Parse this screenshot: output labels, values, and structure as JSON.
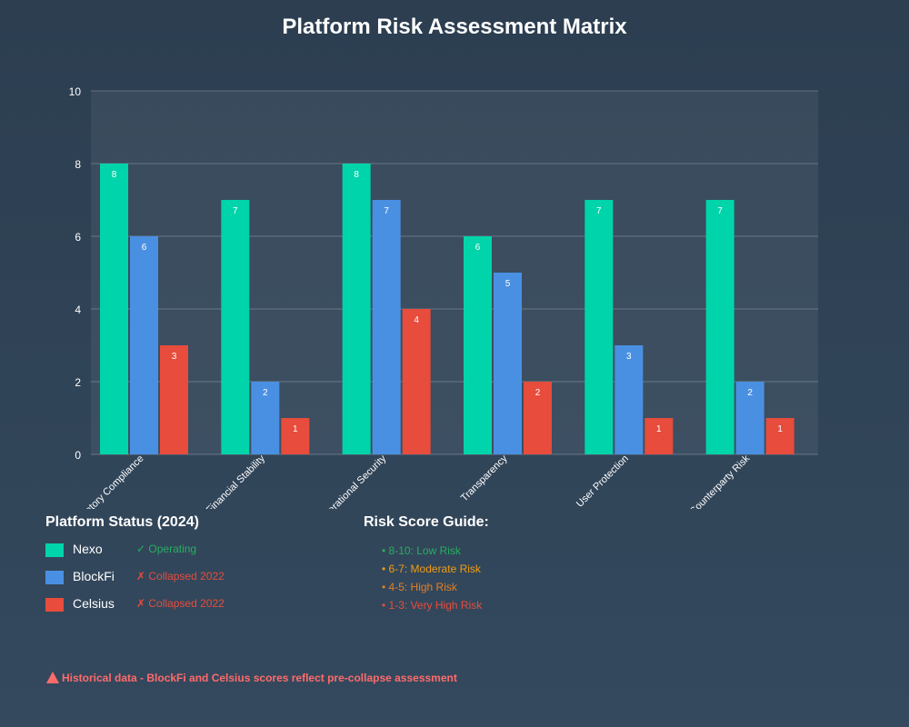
{
  "chart_data": {
    "type": "bar",
    "title": "Platform Risk Assessment Matrix",
    "categories": [
      "Regulatory Compliance",
      "Financial Stability",
      "Operational Security",
      "Transparency",
      "User Protection",
      "Counterparty Risk"
    ],
    "series": [
      {
        "name": "Nexo",
        "values": [
          8,
          7,
          8,
          6,
          7,
          7
        ],
        "color": "#00d4aa"
      },
      {
        "name": "BlockFi",
        "values": [
          6,
          2,
          7,
          5,
          3,
          2
        ],
        "color": "#4a90e2"
      },
      {
        "name": "Celsius",
        "values": [
          3,
          1,
          4,
          2,
          1,
          1
        ],
        "color": "#e74c3c"
      }
    ],
    "ylim": [
      0,
      10
    ],
    "yticks": [
      0,
      2,
      4,
      6,
      8,
      10
    ],
    "xlabel": "",
    "ylabel": "",
    "grid": true,
    "data_labels": true
  },
  "status": {
    "title": "Platform Status (2024)",
    "items": [
      {
        "name": "Nexo",
        "status": "✓ Operating",
        "color": "#00d4aa",
        "status_color": "#27ae60"
      },
      {
        "name": "BlockFi",
        "status": "✗ Collapsed 2022",
        "color": "#4a90e2",
        "status_color": "#e74c3c"
      },
      {
        "name": "Celsius",
        "status": "✗ Collapsed 2022",
        "color": "#e74c3c",
        "status_color": "#e74c3c"
      }
    ]
  },
  "guide": {
    "title": "Risk Score Guide:",
    "items": [
      {
        "text": "• 8-10: Low Risk",
        "color": "#27ae60"
      },
      {
        "text": "• 6-7: Moderate Risk",
        "color": "#f39c12"
      },
      {
        "text": "• 4-5: High Risk",
        "color": "#e67e22"
      },
      {
        "text": "• 1-3: Very High Risk",
        "color": "#e74c3c"
      }
    ]
  },
  "footer": {
    "icon": "warning-icon",
    "text": "Historical data - BlockFi and Celsius scores reflect pre-collapse assessment",
    "color": "#ff6b6b"
  }
}
